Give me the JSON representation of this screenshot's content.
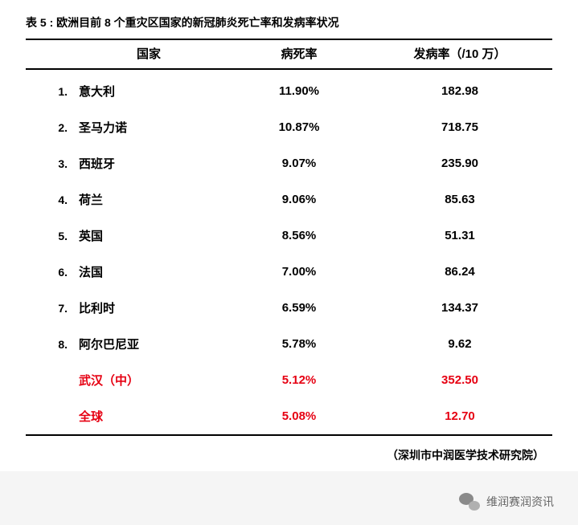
{
  "title": "表 5 : 欧洲目前 8 个重灾区国家的新冠肺炎死亡率和发病率状况",
  "headers": {
    "country": "国家",
    "cfr": "病死率",
    "incidence": "发病率（/10 万）"
  },
  "rows": [
    {
      "idx": "1.",
      "country": "意大利",
      "cfr": "11.90%",
      "incidence": "182.98",
      "highlight": false
    },
    {
      "idx": "2.",
      "country": "圣马力诺",
      "cfr": "10.87%",
      "incidence": "718.75",
      "highlight": false
    },
    {
      "idx": "3.",
      "country": "西班牙",
      "cfr": "9.07%",
      "incidence": "235.90",
      "highlight": false
    },
    {
      "idx": "4.",
      "country": "荷兰",
      "cfr": "9.06%",
      "incidence": "85.63",
      "highlight": false
    },
    {
      "idx": "5.",
      "country": "英国",
      "cfr": "8.56%",
      "incidence": "51.31",
      "highlight": false
    },
    {
      "idx": "6.",
      "country": "法国",
      "cfr": "7.00%",
      "incidence": "86.24",
      "highlight": false
    },
    {
      "idx": "7.",
      "country": "比利时",
      "cfr": "6.59%",
      "incidence": "134.37",
      "highlight": false
    },
    {
      "idx": "8.",
      "country": "阿尔巴尼亚",
      "cfr": "5.78%",
      "incidence": "9.62",
      "highlight": false
    },
    {
      "idx": "",
      "country": "武汉（中）",
      "cfr": "5.12%",
      "incidence": "352.50",
      "highlight": true
    },
    {
      "idx": "",
      "country": "全球",
      "cfr": "5.08%",
      "incidence": "12.70",
      "highlight": true
    }
  ],
  "source": "（深圳市中润医学技术研究院）",
  "footer": {
    "account": "维润赛润资讯"
  },
  "style": {
    "highlight_color": "#e60012",
    "text_color": "#000000",
    "background": "#ffffff",
    "border_color": "#000000",
    "font_family": "Microsoft YaHei",
    "title_fontsize": 14,
    "header_fontsize": 15,
    "cell_fontsize": 15,
    "row_padding_v": 12,
    "footer_text_color": "#666666"
  }
}
